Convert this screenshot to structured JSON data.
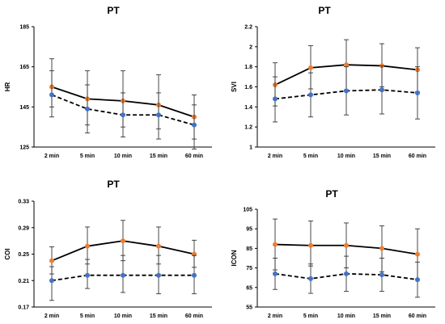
{
  "chart_data": [
    {
      "type": "line",
      "title": "PT",
      "ylabel": "HR",
      "categories": [
        "2 min",
        "5 min",
        "10 min",
        "15 min",
        "60 min"
      ],
      "ylim": [
        125,
        185
      ],
      "yticks": [
        "125",
        "145",
        "165",
        "185"
      ],
      "series": [
        {
          "color": "#ED7D31",
          "line": "solid",
          "values": [
            155,
            149,
            148,
            146,
            140
          ],
          "err_low": [
            145,
            136,
            135,
            134,
            129
          ],
          "err_high": [
            169,
            163,
            163,
            161,
            151
          ]
        },
        {
          "color": "#4472C4",
          "line": "dashed",
          "values": [
            151,
            144,
            141,
            141,
            136
          ],
          "err_low": [
            140,
            132,
            130,
            129,
            124
          ],
          "err_high": [
            163,
            156,
            152,
            152,
            146
          ]
        }
      ]
    },
    {
      "type": "line",
      "title": "PT",
      "ylabel": "SVI",
      "categories": [
        "2 min",
        "5 min",
        "10 min",
        "15 min",
        "60 min"
      ],
      "ylim": [
        1,
        2.2
      ],
      "yticks": [
        "1",
        "1.2",
        "1.4",
        "1.6",
        "1.8",
        "2",
        "2.2"
      ],
      "series": [
        {
          "color": "#ED7D31",
          "line": "solid",
          "values": [
            1.62,
            1.79,
            1.82,
            1.81,
            1.77
          ],
          "err_low": [
            1.41,
            1.58,
            1.57,
            1.6,
            1.55
          ],
          "err_high": [
            1.84,
            2.01,
            2.07,
            2.03,
            1.99
          ]
        },
        {
          "color": "#4472C4",
          "line": "dashed",
          "values": [
            1.48,
            1.52,
            1.56,
            1.57,
            1.54
          ],
          "err_low": [
            1.25,
            1.3,
            1.32,
            1.33,
            1.28
          ],
          "err_high": [
            1.7,
            1.74,
            1.8,
            1.81,
            1.8
          ]
        }
      ]
    },
    {
      "type": "line",
      "title": "PT",
      "ylabel": "COI",
      "categories": [
        "2 min",
        "5 min",
        "10 min",
        "15 min",
        "60 min"
      ],
      "ylim": [
        0.17,
        0.33
      ],
      "yticks": [
        "0.17",
        "0.21",
        "0.25",
        "0.29",
        "0.33"
      ],
      "series": [
        {
          "color": "#ED7D31",
          "line": "solid",
          "values": [
            0.24,
            0.262,
            0.27,
            0.262,
            0.25
          ],
          "err_low": [
            0.22,
            0.235,
            0.24,
            0.235,
            0.23
          ],
          "err_high": [
            0.261,
            0.291,
            0.301,
            0.291,
            0.271
          ]
        },
        {
          "color": "#4472C4",
          "line": "dashed",
          "values": [
            0.21,
            0.218,
            0.218,
            0.218,
            0.218
          ],
          "err_low": [
            0.18,
            0.198,
            0.192,
            0.19,
            0.19
          ],
          "err_high": [
            0.231,
            0.242,
            0.248,
            0.248,
            0.248
          ]
        }
      ]
    },
    {
      "type": "line",
      "title": "PT",
      "ylabel": "ICON",
      "categories": [
        "2 min",
        "5 min",
        "10 min",
        "15 min",
        "60 min"
      ],
      "ylim": [
        55,
        105
      ],
      "yticks": [
        "55",
        "65",
        "75",
        "85",
        "95",
        "105"
      ],
      "series": [
        {
          "color": "#ED7D31",
          "line": "solid",
          "values": [
            87,
            86.5,
            86.5,
            85,
            82
          ],
          "err_low": [
            74,
            76,
            75,
            73,
            69
          ],
          "err_high": [
            100,
            99,
            98,
            96.5,
            95
          ]
        },
        {
          "color": "#4472C4",
          "line": "dashed",
          "values": [
            72,
            69.5,
            72,
            71.5,
            69
          ],
          "err_low": [
            64,
            62,
            63,
            63,
            60
          ],
          "err_high": [
            80,
            77,
            81,
            80,
            78
          ]
        }
      ]
    }
  ]
}
